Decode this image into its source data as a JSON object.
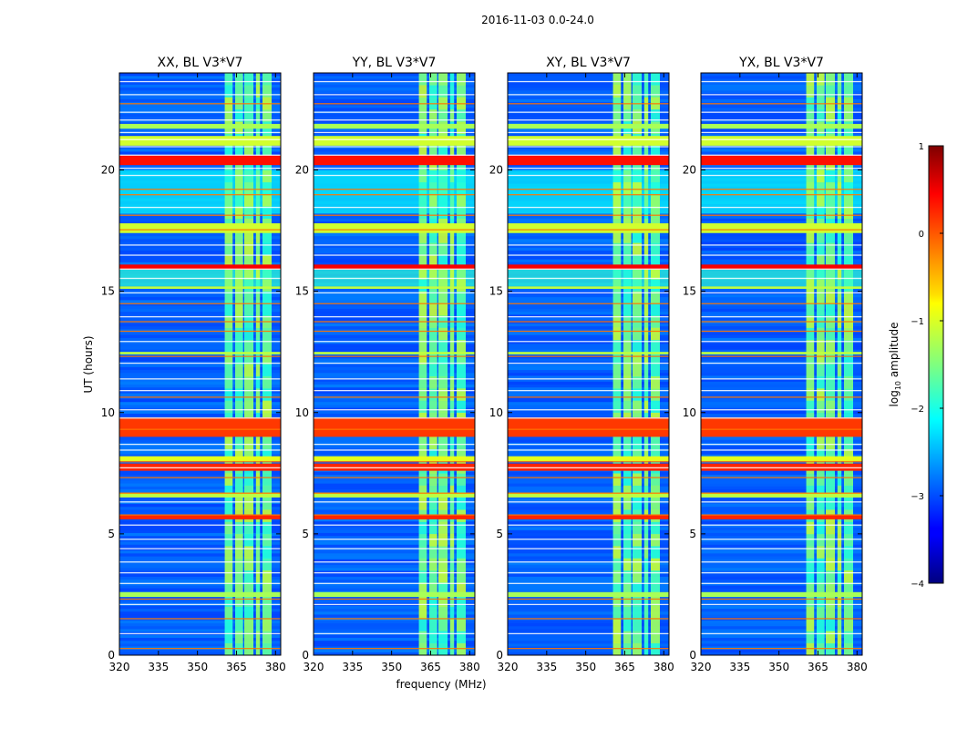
{
  "figure": {
    "suptitle": "2016-11-03 0.0-24.0"
  },
  "chart_data": {
    "type": "heatmap",
    "panels": [
      {
        "title": "XX, BL V3*V7",
        "pol": "XX"
      },
      {
        "title": "YY, BL V3*V7",
        "pol": "YY"
      },
      {
        "title": "XY, BL V3*V7",
        "pol": "XY"
      },
      {
        "title": "YX, BL V3*V7",
        "pol": "YX"
      }
    ],
    "xlabel": "frequency (MHz)",
    "ylabel": "UT (hours)",
    "xlim": [
      320,
      382
    ],
    "ylim": [
      0,
      24
    ],
    "xticks": [
      320,
      335,
      350,
      365,
      380
    ],
    "yticks": [
      0,
      5,
      10,
      15,
      20
    ],
    "colorbar": {
      "label": "log10 amplitude",
      "label_base": "log",
      "label_sub": "10",
      "label_rest": " amplitude",
      "range": [
        -4,
        1
      ],
      "ticks": [
        1,
        0,
        -1,
        -2,
        -3,
        -4
      ],
      "tick_labels": [
        "1",
        "0",
        "−1",
        "−2",
        "−3",
        "−4"
      ],
      "colormap": "jet"
    },
    "rfi_band_mhz": [
      {
        "start": 360.5,
        "end": 363.5
      },
      {
        "start": 364.5,
        "end": 367.5
      },
      {
        "start": 368.0,
        "end": 371.5
      },
      {
        "start": 372.5,
        "end": 374.0
      },
      {
        "start": 375.0,
        "end": 378.5
      }
    ],
    "flagged_time_bands": [
      {
        "start": 20.2,
        "end": 20.6,
        "value": 0.3
      },
      {
        "start": 7.6,
        "end": 7.9,
        "value": 0.2
      },
      {
        "start": 9.0,
        "end": 9.8,
        "value": 0.1
      },
      {
        "start": 15.9,
        "end": 16.1,
        "value": 0.4
      },
      {
        "start": 17.4,
        "end": 17.8,
        "value": -1.1
      },
      {
        "start": 21.0,
        "end": 21.4,
        "value": -1.1
      },
      {
        "start": 21.7,
        "end": 21.9,
        "value": -1.3
      },
      {
        "start": 12.4,
        "end": 12.5,
        "value": -1.2
      },
      {
        "start": 6.5,
        "end": 6.7,
        "value": -1.2
      },
      {
        "start": 5.6,
        "end": 5.8,
        "value": 0.2
      },
      {
        "start": 2.4,
        "end": 2.6,
        "value": -1.3
      },
      {
        "start": 15.1,
        "end": 15.2,
        "value": -1.2
      },
      {
        "start": 8.0,
        "end": 8.2,
        "value": -1.0
      }
    ],
    "elevated_time_ranges": [
      {
        "start": 18.2,
        "end": 20.0,
        "value": -2.1
      },
      {
        "start": 15.2,
        "end": 16.0,
        "value": -1.9
      }
    ],
    "background_log_amplitude": -2.9
  }
}
